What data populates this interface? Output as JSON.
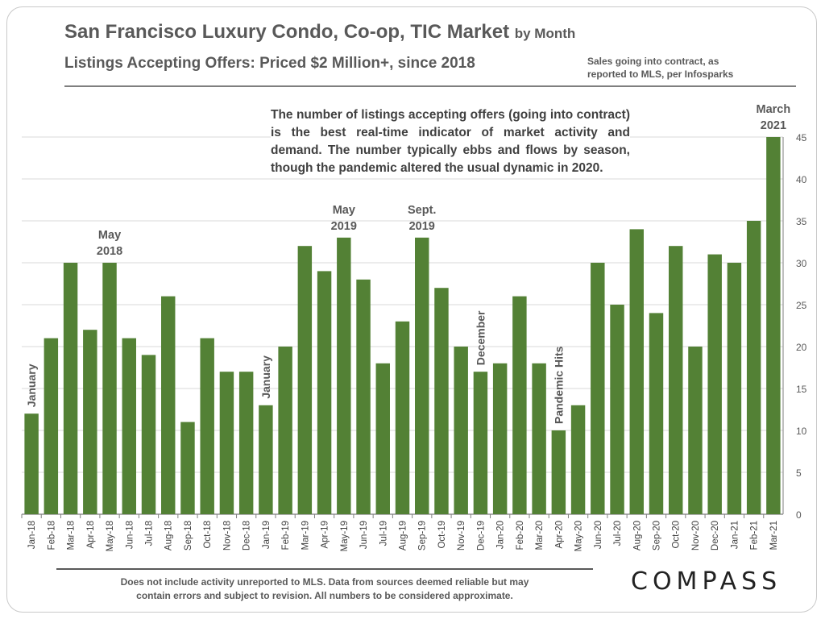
{
  "header": {
    "title": "San Francisco Luxury Condo, Co-op, TIC Market",
    "title_suffix": "by Month",
    "subtitle": "Listings Accepting Offers: Priced $2 Million+, since 2018",
    "source_line1": "Sales going into contract, as",
    "source_line2": "reported to MLS, per Infosparks"
  },
  "callout": "The number of listings accepting offers (going into contract) is the best real-time indicator of market activity and demand. The number typically ebbs and flows by season, though the pandemic altered the usual dynamic in 2020.",
  "footer": {
    "line1": "Does not include activity unreported to MLS. Data from sources deemed reliable but may",
    "line2": "contain errors and subject to revision.  All numbers to be considered approximate.",
    "logo": "COMPASS"
  },
  "colors": {
    "bar": "#538135",
    "grid": "#d9d9d9",
    "axis": "#7f7f7f",
    "text": "#595959",
    "pandemic": "#7b1f1f"
  },
  "chart_data": {
    "type": "bar",
    "categories": [
      "Jan-18",
      "Feb-18",
      "Mar-18",
      "Apr-18",
      "May-18",
      "Jun-18",
      "Jul-18",
      "Aug-18",
      "Sep-18",
      "Oct-18",
      "Nov-18",
      "Dec-18",
      "Jan-19",
      "Feb-19",
      "Mar-19",
      "Apr-19",
      "May-19",
      "Jun-19",
      "Jul-19",
      "Aug-19",
      "Sep-19",
      "Oct-19",
      "Nov-19",
      "Dec-19",
      "Jan-20",
      "Feb-20",
      "Mar-20",
      "Apr-20",
      "May-20",
      "Jun-20",
      "Jul-20",
      "Aug-20",
      "Sep-20",
      "Oct-20",
      "Nov-20",
      "Dec-20",
      "Jan-21",
      "Feb-21",
      "Mar-21"
    ],
    "values": [
      12,
      21,
      30,
      22,
      30,
      21,
      19,
      26,
      11,
      21,
      17,
      17,
      13,
      20,
      32,
      29,
      33,
      28,
      18,
      23,
      33,
      27,
      20,
      17,
      18,
      26,
      18,
      10,
      13,
      30,
      25,
      34,
      24,
      32,
      20,
      31,
      30,
      35,
      45
    ],
    "ylim": [
      0,
      45
    ],
    "yticks": [
      0,
      5,
      10,
      15,
      20,
      25,
      30,
      35,
      40,
      45
    ],
    "y_axis_side": "right",
    "grid": true,
    "annotations": [
      {
        "index": 0,
        "lines": [
          "January"
        ],
        "vertical": true
      },
      {
        "index": 4,
        "lines": [
          "May",
          "2018"
        ],
        "vertical": false
      },
      {
        "index": 12,
        "lines": [
          "January"
        ],
        "vertical": true
      },
      {
        "index": 16,
        "lines": [
          "May",
          "2019"
        ],
        "vertical": false
      },
      {
        "index": 20,
        "lines": [
          "Sept.",
          "2019"
        ],
        "vertical": false
      },
      {
        "index": 23,
        "lines": [
          "December"
        ],
        "vertical": true
      },
      {
        "index": 27,
        "lines": [
          "Pandemic Hits"
        ],
        "vertical": true,
        "highlight": true
      },
      {
        "index": 38,
        "lines": [
          "March",
          "2021"
        ],
        "vertical": false
      }
    ]
  }
}
